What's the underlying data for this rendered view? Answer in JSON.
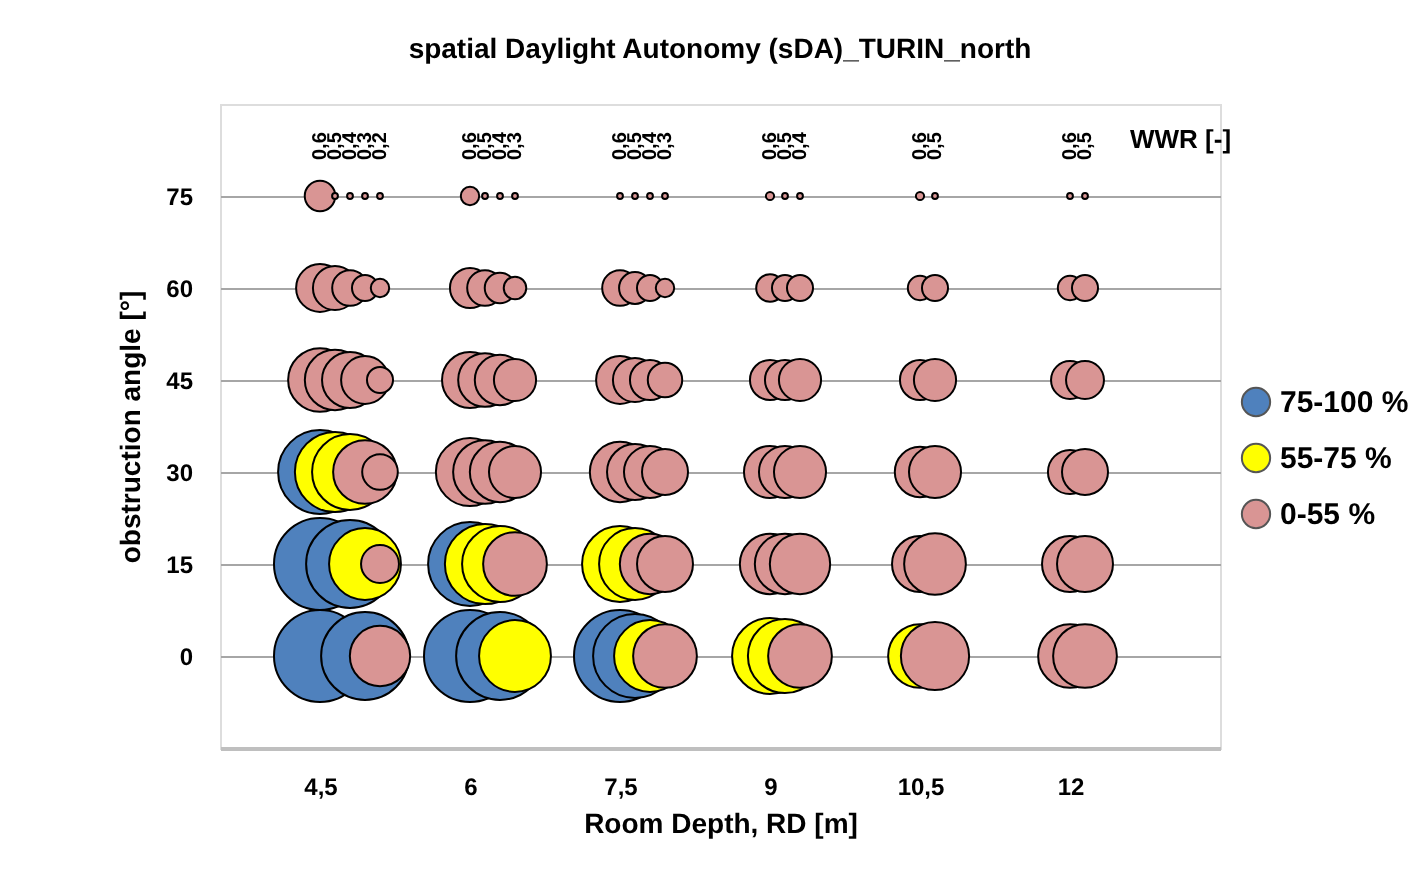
{
  "chart_data": {
    "type": "bubble",
    "title": "spatial Daylight Autonomy (sDA)_TURIN_north",
    "xlabel": "Room Depth, RD [m]",
    "ylabel": "obstruction angle [°]",
    "xlim": [
      3.5,
      13.5
    ],
    "xticks": [
      {
        "value": 4.5,
        "label": "4,5"
      },
      6,
      {
        "value": 7.5,
        "label": "7,5"
      },
      9,
      {
        "value": 10.5,
        "label": "10,5"
      },
      12
    ],
    "ylim": [
      -15,
      90
    ],
    "yticks": [
      0,
      15,
      30,
      45,
      60,
      75
    ],
    "grid": "y",
    "legend": "right",
    "series": [
      {
        "name": "75-100 %",
        "color": "#4f81bd",
        "x": [
          4.5,
          4.65,
          4.8,
          4.95,
          6,
          6.15,
          6.3,
          7.5,
          7.65,
          4.5,
          4.65,
          4.8,
          6,
          4.5
        ],
        "values": [
          0,
          null,
          null,
          0,
          0,
          null,
          0,
          0,
          0,
          15,
          null,
          15,
          15,
          30
        ],
        "sizes": [
          1.0,
          null,
          null,
          0.91,
          1.0,
          null,
          0.91,
          1.0,
          0.83,
          1.0,
          null,
          0.91,
          0.83,
          0.83
        ]
      },
      {
        "name": "55-75 %",
        "color": "#ffff00",
        "x": [
          6.45,
          7.8,
          9,
          9.15,
          10.5,
          4.95,
          6.15,
          6.3,
          7.5,
          7.65,
          4.65,
          4.8
        ],
        "values": [
          0,
          0,
          0,
          0,
          0,
          15,
          15,
          15,
          15,
          15,
          30,
          30
        ],
        "sizes": [
          0.61,
          0.61,
          0.68,
          0.65,
          0.48,
          0.61,
          0.76,
          0.68,
          0.68,
          0.61,
          0.76,
          0.68
        ]
      },
      {
        "name": "0-55 %",
        "color": "#d99594",
        "x": [
          5.1,
          7.95,
          9.3,
          10.65,
          12,
          12.15,
          5.1,
          6.45,
          7.8,
          7.95,
          9,
          9.15,
          9.3,
          10.5,
          10.65,
          12,
          12.15,
          4.95,
          5.1,
          6,
          6.15,
          6.3,
          6.45,
          7.5,
          7.65,
          7.8,
          7.95,
          9,
          9.15,
          9.3,
          10.5,
          10.65,
          12,
          12.15,
          4.5,
          4.65,
          4.8,
          4.95,
          5.1,
          6,
          6.15,
          6.3,
          6.45,
          7.5,
          7.65,
          7.8,
          7.95,
          9,
          9.15,
          9.3,
          10.5,
          10.65,
          12,
          12.15,
          4.5,
          4.65,
          4.8,
          4.95,
          5.1,
          6,
          6.15,
          6.3,
          6.45,
          7.5,
          7.65,
          7.8,
          7.95,
          9,
          9.15,
          9.3,
          10.5,
          10.65,
          12,
          12.15,
          4.5,
          4.65,
          4.8,
          4.95,
          5.1,
          6,
          6.15,
          6.3,
          6.45,
          7.5,
          7.65,
          7.8,
          7.95,
          9,
          9.15,
          9.3,
          10.5,
          10.65,
          12,
          12.15
        ],
        "values": [
          0,
          0,
          0,
          0,
          0,
          0,
          15,
          15,
          15,
          15,
          15,
          15,
          15,
          15,
          15,
          15,
          15,
          30,
          30,
          30,
          30,
          30,
          30,
          30,
          30,
          30,
          30,
          30,
          30,
          30,
          30,
          30,
          30,
          30,
          45,
          45,
          45,
          45,
          45,
          45,
          45,
          45,
          45,
          45,
          45,
          45,
          45,
          45,
          45,
          45,
          45,
          45,
          45,
          45,
          60,
          60,
          60,
          60,
          60,
          60,
          60,
          60,
          60,
          60,
          60,
          60,
          60,
          60,
          60,
          60,
          60,
          60,
          60,
          60,
          75,
          75,
          75,
          75,
          75,
          75,
          75,
          75,
          75,
          75,
          75,
          75,
          75,
          75,
          75,
          75,
          75,
          75,
          75,
          75
        ],
        "sizes": [
          0.43,
          0.48,
          0.48,
          0.55,
          0.48,
          0.48,
          0.17,
          0.48,
          0.43,
          0.37,
          0.43,
          0.43,
          0.43,
          0.37,
          0.45,
          0.37,
          0.37,
          0.48,
          0.15,
          0.55,
          0.48,
          0.43,
          0.32,
          0.43,
          0.37,
          0.32,
          0.25,
          0.32,
          0.32,
          0.32,
          0.3,
          0.32,
          0.23,
          0.25,
          0.48,
          0.43,
          0.37,
          0.27,
          0.08,
          0.37,
          0.34,
          0.3,
          0.21,
          0.27,
          0.23,
          0.19,
          0.14,
          0.19,
          0.19,
          0.21,
          0.19,
          0.21,
          0.17,
          0.17,
          0.27,
          0.23,
          0.15,
          0.08,
          0.04,
          0.19,
          0.15,
          0.11,
          0.06,
          0.15,
          0.12,
          0.08,
          0.04,
          0.09,
          0.08,
          0.08,
          0.07,
          0.08,
          0.07,
          0.08,
          0.11,
          0.004,
          0.004,
          0.004,
          0.004,
          0.04,
          0.004,
          0.004,
          0.004,
          0.004,
          0.004,
          0.004,
          0.004,
          0.008,
          0.004,
          0.004,
          0.008,
          0.004,
          0.004,
          0.004
        ]
      }
    ],
    "annotations": [
      "0,6",
      "0,5",
      "0,4",
      "0,3",
      "0,2",
      "0,6",
      "0,5",
      "0,4",
      "0,3",
      "0,6",
      "0,5",
      "0,4",
      "0,3",
      "0,6",
      "0,5",
      "0,4",
      "0,6",
      "0,5",
      "0,6",
      "0,5",
      "WWR [-]"
    ]
  }
}
